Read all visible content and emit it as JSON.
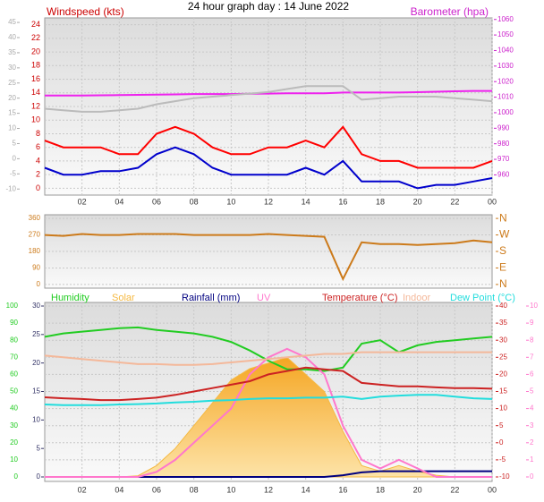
{
  "chart_data": [
    {
      "type": "line",
      "title": "24 hour graph day : 14 June 2022",
      "ylabel": "Windspeed (kts)",
      "y2label": "Barometer (hpa)",
      "x": [
        0,
        1,
        2,
        3,
        4,
        5,
        6,
        7,
        8,
        9,
        10,
        11,
        12,
        13,
        14,
        15,
        16,
        17,
        18,
        19,
        20,
        21,
        22,
        23,
        24
      ],
      "xlim": [
        0,
        24
      ],
      "xticks": [
        {
          "value": 2,
          "label": "02"
        },
        {
          "value": 4,
          "label": "04"
        },
        {
          "value": 6,
          "label": "06"
        },
        {
          "value": 8,
          "label": "08"
        },
        10,
        12,
        14,
        16,
        18,
        20,
        22,
        {
          "value": 24,
          "label": "00"
        }
      ],
      "ylim": [
        -1,
        25
      ],
      "yticks": [
        0,
        2,
        4,
        6,
        8,
        10,
        12,
        14,
        16,
        18,
        20,
        22,
        24
      ],
      "y2lim": [
        947,
        1061
      ],
      "y2ticks": [
        960,
        970,
        980,
        990,
        1000,
        1010,
        1020,
        1030,
        1040,
        1050,
        1060
      ],
      "y3lim": [
        -12,
        46.5
      ],
      "y3ticks": [
        -10,
        -5,
        0,
        5,
        10,
        15,
        20,
        25,
        30,
        35,
        40,
        45
      ],
      "grid": true,
      "series": [
        {
          "color": "#ff0000",
          "values": [
            7,
            6,
            6,
            6,
            5,
            5,
            8,
            9,
            8,
            6,
            5,
            5,
            6,
            6,
            7,
            6,
            9,
            5,
            4,
            4,
            3,
            3,
            3,
            3,
            4
          ]
        },
        {
          "color": "#0000cc",
          "values": [
            3,
            2,
            2,
            2.5,
            2.5,
            3,
            5,
            6,
            5,
            3,
            2,
            2,
            2,
            2,
            3,
            2,
            4,
            1,
            1,
            1,
            0,
            0.5,
            0.5,
            1,
            1.5
          ]
        },
        {
          "color": "#ee22ee",
          "axis": "y2",
          "values": [
            1011,
            1011,
            1011,
            1011.2,
            1011.3,
            1011.5,
            1011.6,
            1011.8,
            1012,
            1012,
            1012,
            1012.2,
            1012.3,
            1012.5,
            1012.5,
            1012.5,
            1013,
            1013,
            1013,
            1013,
            1013.2,
            1013.5,
            1013.8,
            1014,
            1014
          ]
        },
        {
          "color": "#bbbbbb",
          "axis": "y3",
          "values": [
            16.5,
            16,
            15.5,
            15.5,
            16,
            16.5,
            18,
            19,
            20,
            20.5,
            21,
            21.5,
            22,
            23,
            24,
            24,
            24,
            19.5,
            20,
            20.5,
            20.5,
            20.5,
            20,
            19.5,
            19
          ]
        }
      ]
    },
    {
      "type": "line",
      "x": [
        0,
        1,
        2,
        3,
        4,
        5,
        6,
        7,
        8,
        9,
        10,
        11,
        12,
        13,
        14,
        15,
        16,
        17,
        18,
        19,
        20,
        21,
        22,
        23,
        24
      ],
      "xlim": [
        0,
        24
      ],
      "ylim": [
        -20,
        380
      ],
      "yticks": [
        0,
        90,
        180,
        270,
        360
      ],
      "y2ticks": [
        {
          "value": 0,
          "label": "N"
        },
        {
          "value": 90,
          "label": "E"
        },
        {
          "value": 180,
          "label": "S"
        },
        {
          "value": 270,
          "label": "W"
        },
        {
          "value": 360,
          "label": "N"
        }
      ],
      "grid": true,
      "series": [
        {
          "color": "#cc7a1a",
          "values": [
            270,
            265,
            275,
            270,
            270,
            275,
            275,
            275,
            270,
            270,
            270,
            270,
            275,
            270,
            265,
            260,
            30,
            230,
            220,
            220,
            215,
            220,
            225,
            240,
            230
          ]
        }
      ]
    },
    {
      "type": "line",
      "x": [
        0,
        1,
        2,
        3,
        4,
        5,
        6,
        7,
        8,
        9,
        10,
        11,
        12,
        13,
        14,
        15,
        16,
        17,
        18,
        19,
        20,
        21,
        22,
        23,
        24
      ],
      "xlim": [
        0,
        24
      ],
      "xticks": [
        {
          "value": 2,
          "label": "02"
        },
        {
          "value": 4,
          "label": "04"
        },
        {
          "value": 6,
          "label": "06"
        },
        {
          "value": 8,
          "label": "08"
        },
        10,
        12,
        14,
        16,
        18,
        20,
        22,
        {
          "value": 24,
          "label": "00"
        }
      ],
      "ylim": [
        0,
        100
      ],
      "yticks": [
        0,
        10,
        20,
        30,
        40,
        50,
        60,
        70,
        80,
        90,
        100
      ],
      "y2lim": [
        -10,
        40
      ],
      "y2ticks": [
        -10,
        -5,
        0,
        5,
        10,
        15,
        20,
        25,
        30,
        35,
        40
      ],
      "y3lim": [
        0,
        30
      ],
      "y3ticks": [
        0,
        5,
        10,
        15,
        20,
        25,
        30
      ],
      "y4lim": [
        0,
        10
      ],
      "y4ticks": [
        0,
        1,
        2,
        3,
        4,
        5,
        6,
        7,
        8,
        9,
        10
      ],
      "grid": true,
      "series": [
        {
          "name": "Solar",
          "color": "#f5b942",
          "axis": "y3",
          "fill": true,
          "values": [
            0,
            0,
            0,
            0,
            0,
            0.2,
            2,
            5,
            9,
            13,
            17,
            19,
            20,
            21,
            18,
            15,
            8,
            2,
            1,
            2,
            1,
            0.3,
            0,
            0,
            0
          ]
        },
        {
          "name": "Humidity",
          "color": "#22cc22",
          "values": [
            82,
            84,
            85,
            86,
            87,
            87.5,
            86,
            85,
            84,
            82,
            79,
            74,
            68,
            63,
            63,
            62,
            64,
            78,
            80,
            73,
            77,
            79,
            80,
            81,
            82
          ]
        },
        {
          "name": "Rainfall (mm)",
          "color": "#000080",
          "axis": "y3",
          "values": [
            0,
            0,
            0,
            0,
            0,
            0,
            0,
            0,
            0,
            0,
            0,
            0,
            0,
            0,
            0,
            0,
            0.3,
            0.8,
            1,
            1,
            1,
            1,
            1,
            1,
            1
          ]
        },
        {
          "name": "UV",
          "color": "#ff77cc",
          "axis": "y4",
          "values": [
            0,
            0,
            0,
            0,
            0,
            0,
            0.3,
            1,
            2,
            3,
            4,
            6,
            7,
            7.5,
            7,
            6,
            3,
            1,
            0.5,
            1,
            0.5,
            0,
            0,
            0,
            0
          ]
        },
        {
          "name": "Temperature (°C)",
          "color": "#cc2222",
          "axis": "y2",
          "values": [
            13.3,
            13,
            12.8,
            12.5,
            12.5,
            12.8,
            13.2,
            14,
            15,
            16,
            17,
            18,
            20,
            21,
            22,
            21.5,
            21,
            17.5,
            17,
            16.5,
            16.5,
            16.2,
            16,
            16,
            15.8
          ]
        },
        {
          "name": "Indoor",
          "color": "#f4b89a",
          "axis": "y2",
          "values": [
            25.5,
            25,
            24.5,
            24,
            23.5,
            23,
            23,
            22.8,
            22.8,
            23,
            23.5,
            24,
            24.5,
            25,
            25.5,
            26,
            26,
            26.5,
            26.5,
            26.5,
            26.5,
            26.5,
            26.5,
            26.5,
            26.5
          ]
        },
        {
          "name": "Dew Point (°C)",
          "color": "#22dddd",
          "axis": "y2",
          "values": [
            11.2,
            11,
            11,
            11,
            11.2,
            11.3,
            11.5,
            11.8,
            12,
            12.3,
            12.5,
            12.8,
            13,
            13,
            13.2,
            13.2,
            13.5,
            12.8,
            13.5,
            13.8,
            14,
            14,
            13.5,
            13,
            12.8
          ]
        }
      ]
    }
  ]
}
